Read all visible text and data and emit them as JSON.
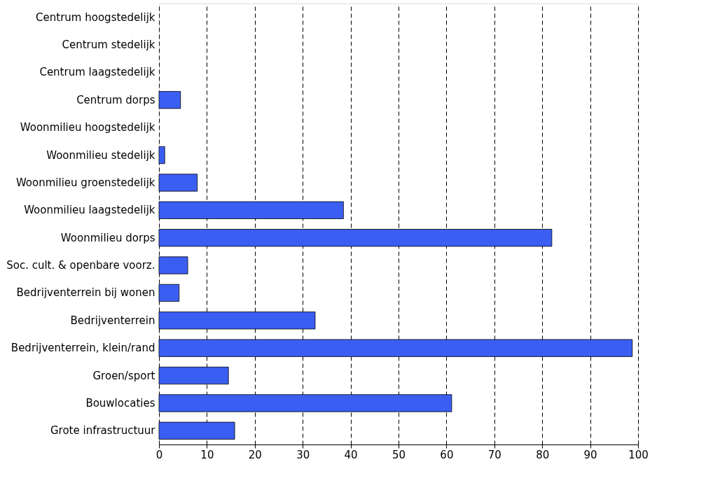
{
  "chart_data": {
    "type": "bar",
    "orientation": "horizontal",
    "categories": [
      "Centrum hoogstedelijk",
      "Centrum stedelijk",
      "Centrum laagstedelijk",
      "Centrum dorps",
      "Woonmilieu hoogstedelijk",
      "Woonmilieu stedelijk",
      "Woonmilieu groenstedelijk",
      "Woonmilieu laagstedelijk",
      "Woonmilieu dorps",
      "Soc. cult. & openbare voorz.",
      "Bedrijventerrein bij wonen",
      "Bedrijventerrein",
      "Bedrijventerrein, klein/rand",
      "Groen/sport",
      "Bouwlocaties",
      "Grote infrastructuur"
    ],
    "values": [
      null,
      null,
      null,
      4.5,
      null,
      1.2,
      8,
      38.5,
      82,
      6,
      4.2,
      32.6,
      98.8,
      14.5,
      61.1,
      15.8
    ],
    "color": "#3b5ef2",
    "xlim": [
      0,
      100
    ],
    "xticks": [
      0,
      10,
      20,
      30,
      40,
      50,
      60,
      70,
      80,
      90,
      100
    ],
    "grid": "x"
  }
}
